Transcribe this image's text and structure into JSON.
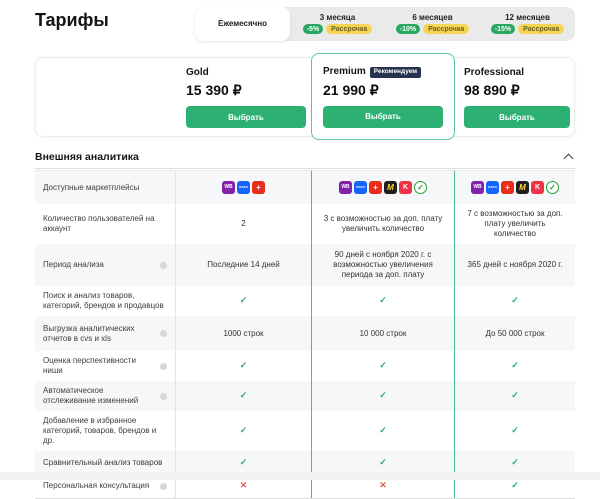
{
  "page": {
    "title": "Тарифы"
  },
  "colors": {
    "accent_green": "#2db173",
    "premium_border_green": "#5fc493",
    "check_green": "#2bae66",
    "cross_red": "#e35b55",
    "discount_badge_green": "#29a65f",
    "installment_badge_yellow": "#f6d554",
    "recommended_badge_navy": "#273350"
  },
  "billing_tabs": [
    {
      "label": "Ежемесячно",
      "discount": "",
      "installment": "",
      "active": true
    },
    {
      "label": "3 месяца",
      "discount": "-5%",
      "installment": "Рассрочка",
      "active": false
    },
    {
      "label": "6 месяцев",
      "discount": "-10%",
      "installment": "Рассрочка",
      "active": false
    },
    {
      "label": "12 месяцев",
      "discount": "-15%",
      "installment": "Рассрочка",
      "active": false
    }
  ],
  "plans": [
    {
      "name": "Gold",
      "price": "15 390 ₽",
      "button": "Выбрать"
    },
    {
      "name": "Premium",
      "badge": "Рекомендуем",
      "price": "21 990 ₽",
      "button": "Выбрать"
    },
    {
      "name": "Professional",
      "price": "98 890 ₽",
      "button": "Выбрать"
    }
  ],
  "section": {
    "title": "Внешняя аналитика"
  },
  "marketplaces": [
    {
      "name": "wildberries",
      "abbr": "WB",
      "bg": "#8322a9",
      "fg": "#ffffff"
    },
    {
      "name": "ozon",
      "abbr": "ozon",
      "bg": "#1464ff",
      "fg": "#ffffff"
    },
    {
      "name": "aliexpress",
      "abbr": "+",
      "bg": "#e62e1b",
      "fg": "#ffffff"
    },
    {
      "name": "yandex-market",
      "abbr": "M",
      "bg": "#1f1f1f",
      "fg": "#ffd633"
    },
    {
      "name": "kazanexpress",
      "abbr": "K",
      "bg": "#ee3347",
      "fg": "#ffffff"
    },
    {
      "name": "sbermegamarket",
      "abbr": "✓",
      "bg": "#ffffff",
      "fg": "#21a038"
    }
  ],
  "table": {
    "rows": [
      {
        "label": "Доступные маркетплейсы",
        "info": false,
        "values": [
          "[mp:3]",
          "[mp:6]",
          "[mp:6]"
        ]
      },
      {
        "label": "Количество пользователей на аккаунт",
        "info": false,
        "values": [
          "2",
          "3 с возможностью за доп. плату увеличить количество",
          "7 с возможностью за доп. плату увеличить количество"
        ]
      },
      {
        "label": "Период анализа",
        "info": true,
        "values": [
          "Последние 14 дней",
          "90 дней с ноября 2020 г. с возможностью увеличения периода за доп. плату",
          "365 дней с ноября 2020 г."
        ]
      },
      {
        "label": "Поиск и анализ товаров, категорий, брендов и продавцов",
        "info": false,
        "values": [
          "[check]",
          "[check]",
          "[check]"
        ]
      },
      {
        "label": "Выгрузка аналитических отчетов в cvs и xls",
        "info": true,
        "values": [
          "1000 строк",
          "10 000 строк",
          "До 50 000 строк"
        ]
      },
      {
        "label": "Оценка перспективности ниши",
        "info": true,
        "values": [
          "[check]",
          "[check]",
          "[check]"
        ]
      },
      {
        "label": "Автоматическое отслеживание изменений",
        "info": true,
        "values": [
          "[check]",
          "[check]",
          "[check]"
        ]
      },
      {
        "label": "Добавление в избранное категорий, товаров, брендов и др.",
        "info": false,
        "values": [
          "[check]",
          "[check]",
          "[check]"
        ]
      },
      {
        "label": "Сравнительный анализ товаров",
        "info": false,
        "values": [
          "[check]",
          "[check]",
          "[check]"
        ]
      },
      {
        "label": "Персональная консультация",
        "info": true,
        "values": [
          "[cross]",
          "[cross]",
          "[check]"
        ]
      }
    ]
  }
}
